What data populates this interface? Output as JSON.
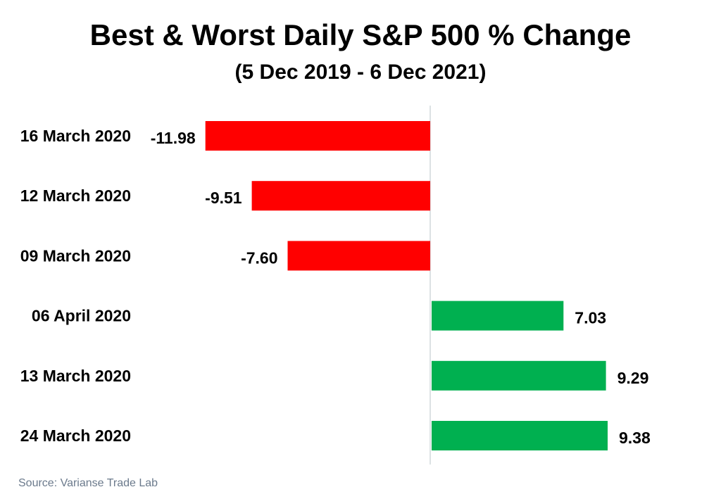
{
  "header": {
    "title": "Best & Worst Daily S&P 500 % Change",
    "subtitle": "(5 Dec 2019 - 6 Dec 2021)"
  },
  "footer": {
    "source": "Source: Varianse Trade Lab"
  },
  "chart_data": {
    "type": "bar",
    "orientation": "horizontal",
    "title": "Best & Worst Daily S&P 500 % Change",
    "subtitle": "(5 Dec 2019 - 6 Dec 2021)",
    "categories": [
      "16 March 2020",
      "12 March 2020",
      "09 March 2020",
      "06 April 2020",
      "13 March 2020",
      "24 March 2020"
    ],
    "values": [
      -11.98,
      -9.51,
      -7.6,
      7.03,
      9.29,
      9.38
    ],
    "value_labels": [
      "-11.98",
      "-9.51",
      "-7.60",
      "7.03",
      "9.29",
      "9.38"
    ],
    "colors": {
      "negative": "#ff0000",
      "positive": "#00b050",
      "axis": "#d0d8dc",
      "text": "#000000"
    },
    "grid": false,
    "legend": "none"
  }
}
